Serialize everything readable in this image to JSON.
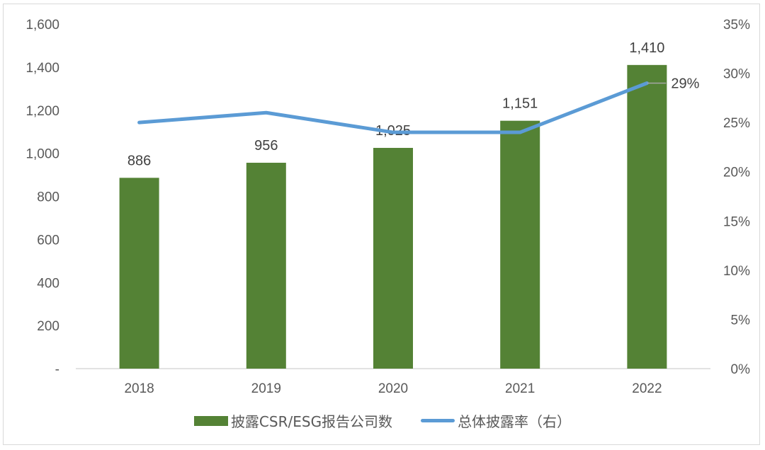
{
  "chart_data": {
    "type": "bar+line",
    "title": "",
    "categories": [
      "2018",
      "2019",
      "2020",
      "2021",
      "2022"
    ],
    "series": [
      {
        "name": "披露CSR/ESG报告公司数",
        "type": "bar",
        "axis": "left",
        "color": "#548235",
        "values": [
          886,
          956,
          1025,
          1151,
          1410
        ],
        "labels": [
          "886",
          "956",
          "1,025",
          "1,151",
          "1,410"
        ]
      },
      {
        "name": "总体披露率（右）",
        "type": "line",
        "axis": "right",
        "color": "#5b9bd5",
        "values": [
          0.25,
          0.26,
          0.24,
          0.24,
          0.29
        ],
        "labels": [
          "",
          "",
          "",
          "",
          "29%"
        ]
      }
    ],
    "left_axis": {
      "ticks": [
        "-",
        "200",
        "400",
        "600",
        "800",
        "1,000",
        "1,200",
        "1,400",
        "1,600"
      ],
      "range": [
        0,
        1600
      ]
    },
    "right_axis": {
      "ticks": [
        "0%",
        "5%",
        "10%",
        "15%",
        "20%",
        "25%",
        "30%",
        "35%"
      ],
      "range": [
        0,
        0.35
      ]
    },
    "xlabel": "",
    "ylabel": "",
    "grid": false,
    "legend_position": "bottom"
  },
  "legend": {
    "bar_label": "披露CSR/ESG报告公司数",
    "line_label": "总体披露率（右）"
  }
}
